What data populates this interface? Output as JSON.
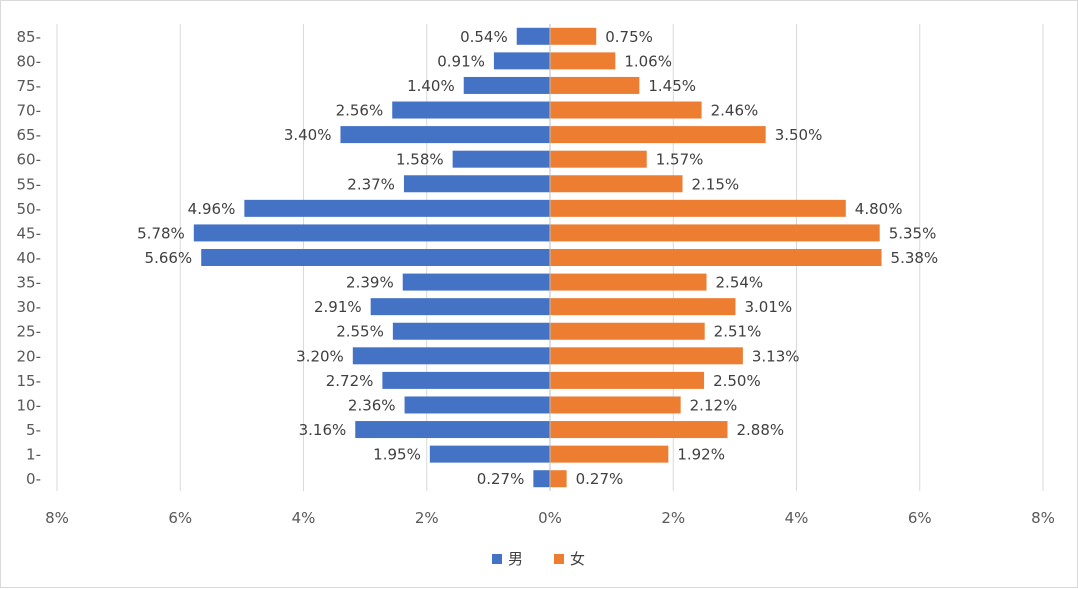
{
  "chart_data": {
    "type": "bar",
    "orientation": "horizontal",
    "layout": "population-pyramid",
    "title": "",
    "xlabel": "",
    "ylabel": "",
    "categories": [
      "0-",
      "1-",
      "5-",
      "10-",
      "15-",
      "20-",
      "25-",
      "30-",
      "35-",
      "40-",
      "45-",
      "50-",
      "55-",
      "60-",
      "65-",
      "70-",
      "75-",
      "80-",
      "85-"
    ],
    "series": [
      {
        "name": "男",
        "color": "#4472c4",
        "side": "left",
        "values": [
          0.27,
          1.95,
          3.16,
          2.36,
          2.72,
          3.2,
          2.55,
          2.91,
          2.39,
          5.66,
          5.78,
          4.96,
          2.37,
          1.58,
          3.4,
          2.56,
          1.4,
          0.91,
          0.54
        ],
        "labels": [
          "0.27%",
          "1.95%",
          "3.16%",
          "2.36%",
          "2.72%",
          "3.20%",
          "2.55%",
          "2.91%",
          "2.39%",
          "5.66%",
          "5.78%",
          "4.96%",
          "2.37%",
          "1.58%",
          "3.40%",
          "2.56%",
          "1.40%",
          "0.91%",
          "0.54%"
        ]
      },
      {
        "name": "女",
        "color": "#ed7d31",
        "side": "right",
        "values": [
          0.27,
          1.92,
          2.88,
          2.12,
          2.5,
          3.13,
          2.51,
          3.01,
          2.54,
          5.38,
          5.35,
          4.8,
          2.15,
          1.57,
          3.5,
          2.46,
          1.45,
          1.06,
          0.75
        ],
        "labels": [
          "0.27%",
          "1.92%",
          "2.88%",
          "2.12%",
          "2.50%",
          "3.13%",
          "2.51%",
          "3.01%",
          "2.54%",
          "5.38%",
          "5.35%",
          "4.80%",
          "2.15%",
          "1.57%",
          "3.50%",
          "2.46%",
          "1.45%",
          "1.06%",
          "0.75%"
        ]
      }
    ],
    "xlim": [
      -8,
      8
    ],
    "xticks": [
      -8,
      -6,
      -4,
      -2,
      0,
      2,
      4,
      6,
      8
    ],
    "xtick_labels": [
      "8%",
      "6%",
      "4%",
      "2%",
      "0%",
      "2%",
      "4%",
      "6%",
      "8%"
    ],
    "grid": "vertical",
    "legend": {
      "position": "bottom"
    }
  }
}
